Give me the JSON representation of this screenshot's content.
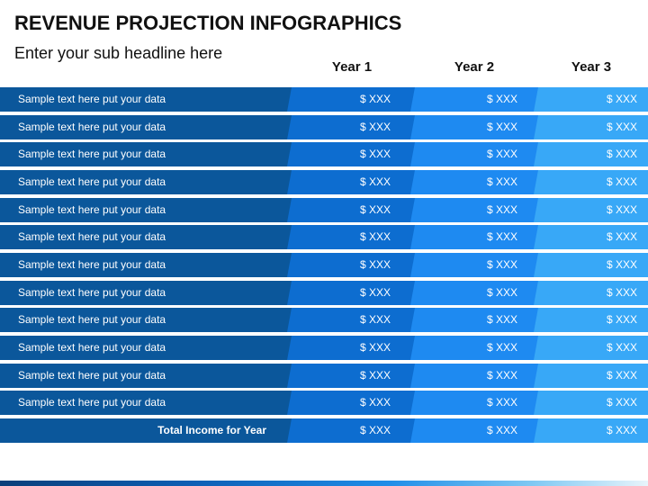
{
  "title": "REVENUE PROJECTION INFOGRAPHICS",
  "subtitle": "Enter your sub headline here",
  "columns": [
    "Year 1",
    "Year 2",
    "Year 3"
  ],
  "rows": [
    {
      "label": "Sample text here put your data",
      "values": [
        "$ XXX",
        "$ XXX",
        "$ XXX"
      ]
    },
    {
      "label": "Sample text here put your data",
      "values": [
        "$ XXX",
        "$ XXX",
        "$ XXX"
      ]
    },
    {
      "label": "Sample text here put your data",
      "values": [
        "$ XXX",
        "$ XXX",
        "$ XXX"
      ]
    },
    {
      "label": "Sample text here put your data",
      "values": [
        "$ XXX",
        "$ XXX",
        "$ XXX"
      ]
    },
    {
      "label": "Sample text here put your data",
      "values": [
        "$ XXX",
        "$ XXX",
        "$ XXX"
      ]
    },
    {
      "label": "Sample text here put your data",
      "values": [
        "$ XXX",
        "$ XXX",
        "$ XXX"
      ]
    },
    {
      "label": "Sample text here put your data",
      "values": [
        "$ XXX",
        "$ XXX",
        "$ XXX"
      ]
    },
    {
      "label": "Sample text here put your data",
      "values": [
        "$ XXX",
        "$ XXX",
        "$ XXX"
      ]
    },
    {
      "label": "Sample text here put your data",
      "values": [
        "$ XXX",
        "$ XXX",
        "$ XXX"
      ]
    },
    {
      "label": "Sample text here put your data",
      "values": [
        "$ XXX",
        "$ XXX",
        "$ XXX"
      ]
    },
    {
      "label": "Sample text here put your data",
      "values": [
        "$ XXX",
        "$ XXX",
        "$ XXX"
      ]
    },
    {
      "label": "Sample text here put your data",
      "values": [
        "$ XXX",
        "$ XXX",
        "$ XXX"
      ]
    }
  ],
  "total": {
    "label": "Total Income for Year",
    "values": [
      "$ XXX",
      "$ XXX",
      "$ XXX"
    ]
  },
  "colors": {
    "label_column": "#0b579b",
    "year_1": "#0d6dd0",
    "year_2": "#1e8af1",
    "year_3": "#38a8f7"
  }
}
